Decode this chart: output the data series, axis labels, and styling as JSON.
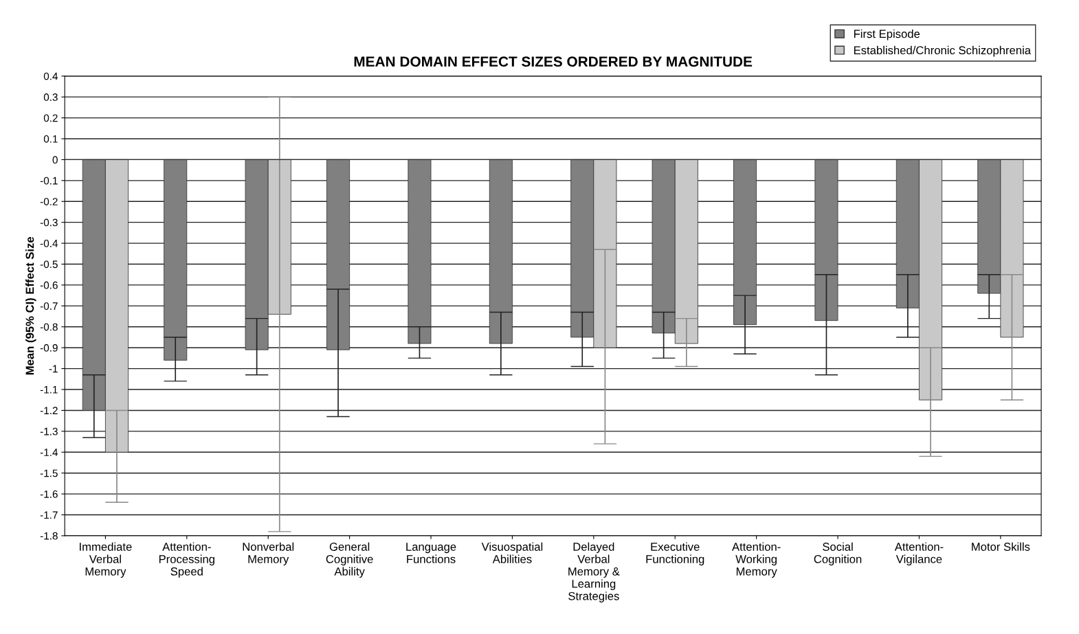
{
  "chart_data": {
    "type": "bar",
    "title": "MEAN DOMAIN EFFECT SIZES ORDERED BY MAGNITUDE",
    "ylabel": "Mean (95% CI) Effect Size",
    "categories": [
      "Immediate\nVerbal\nMemory",
      "Attention-\nProcessing\nSpeed",
      "Nonverbal\nMemory",
      "General\nCognitive\nAbility",
      "Language\nFunctions",
      "Visuospatial\nAbilities",
      "Delayed\nVerbal\nMemory &\nLearning\nStrategies",
      "Executive\nFunctioning",
      "Attention-\nWorking\nMemory",
      "Social\nCognition",
      "Attention-\nVigilance",
      "Motor Skills"
    ],
    "series": [
      {
        "name": "First Episode",
        "color": "#808080",
        "values": [
          -1.2,
          -0.96,
          -0.91,
          -0.91,
          -0.88,
          -0.88,
          -0.85,
          -0.83,
          -0.79,
          -0.77,
          -0.71,
          -0.64
        ],
        "errors": [
          [
            -1.33,
            -1.03
          ],
          [
            -1.06,
            -0.85
          ],
          [
            -1.03,
            -0.76
          ],
          [
            -1.23,
            -0.62
          ],
          [
            -0.95,
            -0.8
          ],
          [
            -1.03,
            -0.73
          ],
          [
            -0.99,
            -0.73
          ],
          [
            -0.95,
            -0.73
          ],
          [
            -0.93,
            -0.65
          ],
          [
            -1.03,
            -0.55
          ],
          [
            -0.85,
            -0.55
          ],
          [
            -0.76,
            -0.55
          ]
        ]
      },
      {
        "name": "Established/Chronic Schizophrenia",
        "color": "#c8c8c8",
        "values": [
          -1.4,
          null,
          -0.74,
          null,
          null,
          null,
          -0.9,
          -0.88,
          null,
          null,
          -1.15,
          -0.85
        ],
        "errors": [
          [
            -1.64,
            -1.2
          ],
          null,
          [
            -1.78,
            0.3
          ],
          null,
          null,
          null,
          [
            -1.36,
            -0.43
          ],
          [
            -0.99,
            -0.76
          ],
          null,
          null,
          [
            -1.42,
            -0.9
          ],
          [
            -1.15,
            -0.55
          ]
        ]
      }
    ],
    "ylim": [
      -1.8,
      0.4
    ],
    "yticks": [
      0.4,
      0.3,
      0.2,
      0.1,
      0,
      -0.1,
      -0.2,
      -0.3,
      -0.4,
      -0.5,
      -0.6,
      -0.7,
      -0.8,
      -0.9,
      -1,
      -1.1,
      -1.2,
      -1.3,
      -1.4,
      -1.5,
      -1.6,
      -1.7,
      -1.8
    ],
    "grid": "y",
    "legend": "top right"
  }
}
